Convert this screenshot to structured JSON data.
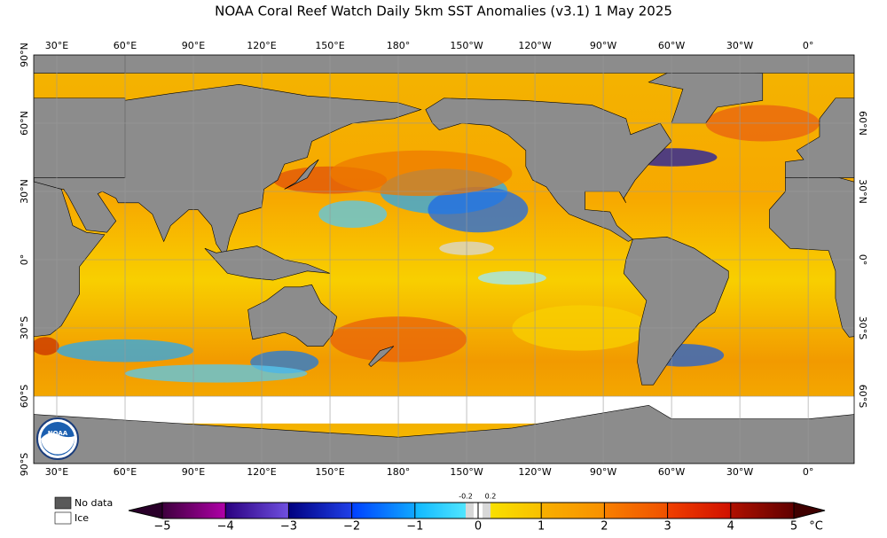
{
  "title": "NOAA Coral Reef Watch Daily 5km SST Anomalies  (v3.1)   1 May 2025",
  "lon_labels": [
    "30°E",
    "60°E",
    "90°E",
    "120°E",
    "150°E",
    "180°",
    "150°W",
    "120°W",
    "90°W",
    "60°W",
    "30°W",
    "0°"
  ],
  "lat_labels_left": [
    "90°N",
    "60°N",
    "30°N",
    "0°",
    "30°S",
    "60°S",
    "90°S"
  ],
  "lat_labels_right": [
    "60°N",
    "30°N",
    "0°",
    "30°S",
    "60°S"
  ],
  "legend": {
    "no_data": "No data",
    "ice": "Ice"
  },
  "colorbar": {
    "ticks": [
      "−5",
      "−4",
      "−3",
      "−2",
      "−1",
      "0",
      "1",
      "2",
      "3",
      "4",
      "5"
    ],
    "inner_ticks": [
      "-0.2",
      "0.2"
    ],
    "unit": "°C"
  }
}
